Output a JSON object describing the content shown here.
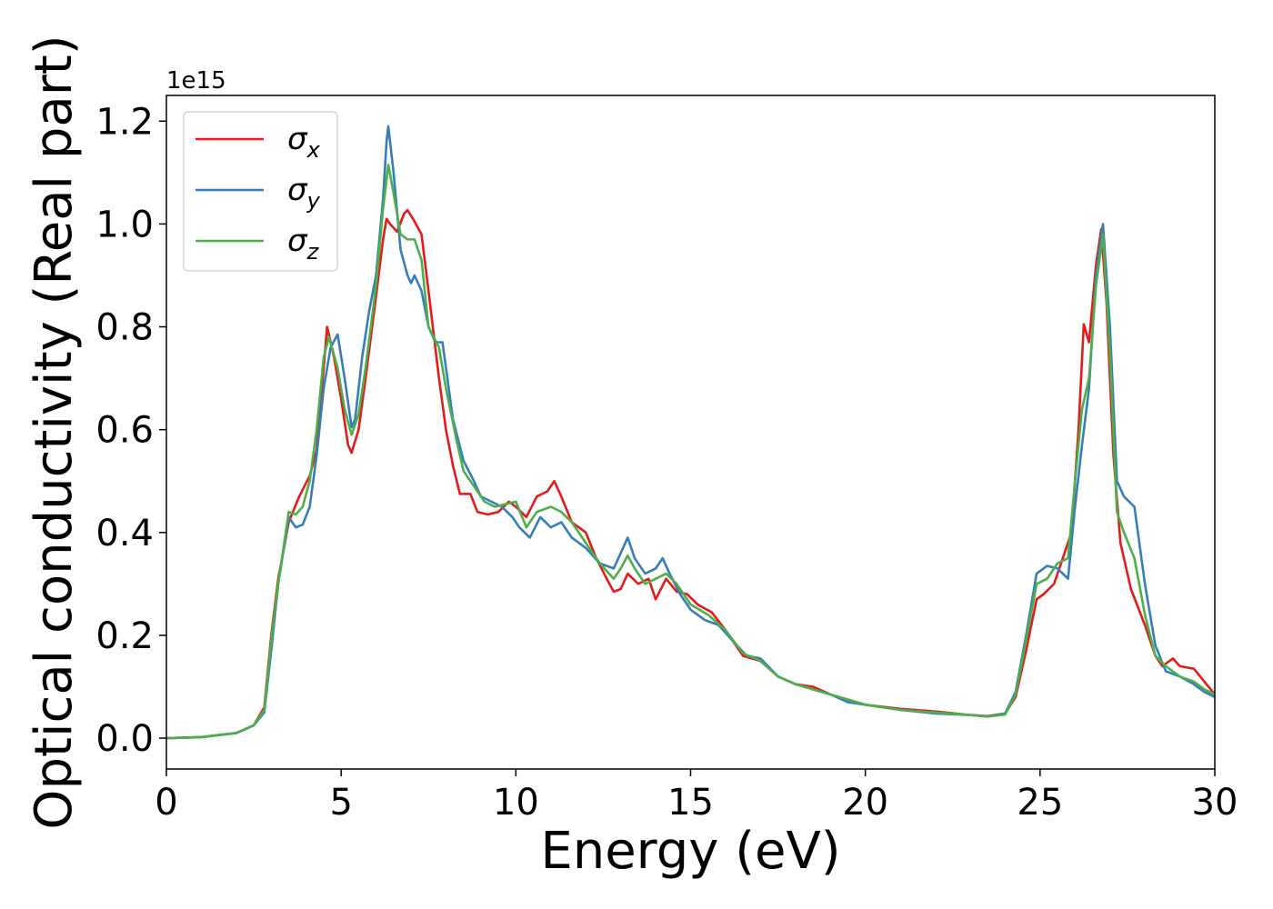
{
  "chart_data": {
    "type": "line",
    "xlabel": "Energy (eV)",
    "ylabel": "Optical conductivity (Real part)",
    "y_offset_text": "1e15",
    "xlim": [
      0,
      30
    ],
    "ylim": [
      -0.06,
      1.25
    ],
    "x_ticks": [
      0,
      5,
      10,
      15,
      20,
      25,
      30
    ],
    "x_tick_labels": [
      "0",
      "5",
      "10",
      "15",
      "20",
      "25",
      "30"
    ],
    "y_ticks": [
      0.0,
      0.2,
      0.4,
      0.6,
      0.8,
      1.0,
      1.2
    ],
    "y_tick_labels": [
      "0.0",
      "0.2",
      "0.4",
      "0.6",
      "0.8",
      "1.0",
      "1.2"
    ],
    "grid": false,
    "legend_position": "top-left",
    "series": [
      {
        "name": "σx",
        "symbol": "σ",
        "subscript": "x",
        "color": "#e41a1c",
        "points": [
          [
            0,
            0
          ],
          [
            1,
            0.002
          ],
          [
            2,
            0.01
          ],
          [
            2.5,
            0.025
          ],
          [
            2.8,
            0.06
          ],
          [
            3,
            0.2
          ],
          [
            3.2,
            0.31
          ],
          [
            3.5,
            0.42
          ],
          [
            3.8,
            0.47
          ],
          [
            4.1,
            0.51
          ],
          [
            4.3,
            0.56
          ],
          [
            4.5,
            0.72
          ],
          [
            4.6,
            0.8
          ],
          [
            4.8,
            0.74
          ],
          [
            5,
            0.66
          ],
          [
            5.2,
            0.57
          ],
          [
            5.3,
            0.555
          ],
          [
            5.5,
            0.6
          ],
          [
            5.7,
            0.7
          ],
          [
            6,
            0.86
          ],
          [
            6.2,
            0.97
          ],
          [
            6.3,
            1.01
          ],
          [
            6.4,
            1.0
          ],
          [
            6.6,
            0.985
          ],
          [
            6.8,
            1.02
          ],
          [
            6.9,
            1.027
          ],
          [
            7.1,
            1.005
          ],
          [
            7.3,
            0.98
          ],
          [
            7.5,
            0.87
          ],
          [
            7.8,
            0.7
          ],
          [
            8,
            0.6
          ],
          [
            8.2,
            0.53
          ],
          [
            8.4,
            0.475
          ],
          [
            8.7,
            0.475
          ],
          [
            8.9,
            0.44
          ],
          [
            9.2,
            0.435
          ],
          [
            9.5,
            0.44
          ],
          [
            9.8,
            0.46
          ],
          [
            10,
            0.45
          ],
          [
            10.3,
            0.43
          ],
          [
            10.6,
            0.47
          ],
          [
            10.9,
            0.48
          ],
          [
            11.1,
            0.5
          ],
          [
            11.3,
            0.47
          ],
          [
            11.6,
            0.42
          ],
          [
            12,
            0.4
          ],
          [
            12.3,
            0.35
          ],
          [
            12.6,
            0.31
          ],
          [
            12.8,
            0.285
          ],
          [
            13,
            0.29
          ],
          [
            13.2,
            0.32
          ],
          [
            13.5,
            0.3
          ],
          [
            13.8,
            0.31
          ],
          [
            14,
            0.27
          ],
          [
            14.3,
            0.31
          ],
          [
            14.6,
            0.285
          ],
          [
            14.9,
            0.28
          ],
          [
            15.2,
            0.26
          ],
          [
            15.6,
            0.245
          ],
          [
            16,
            0.21
          ],
          [
            16.5,
            0.16
          ],
          [
            17,
            0.15
          ],
          [
            17.5,
            0.12
          ],
          [
            18,
            0.105
          ],
          [
            18.5,
            0.1
          ],
          [
            19,
            0.085
          ],
          [
            19.5,
            0.075
          ],
          [
            20,
            0.065
          ],
          [
            21,
            0.057
          ],
          [
            22,
            0.052
          ],
          [
            23,
            0.045
          ],
          [
            23.5,
            0.043
          ],
          [
            24,
            0.048
          ],
          [
            24.3,
            0.08
          ],
          [
            24.6,
            0.17
          ],
          [
            24.9,
            0.27
          ],
          [
            25.1,
            0.28
          ],
          [
            25.4,
            0.3
          ],
          [
            25.7,
            0.36
          ],
          [
            25.9,
            0.4
          ],
          [
            26.1,
            0.6
          ],
          [
            26.25,
            0.805
          ],
          [
            26.4,
            0.77
          ],
          [
            26.6,
            0.92
          ],
          [
            26.75,
            0.99
          ],
          [
            26.9,
            0.85
          ],
          [
            27.1,
            0.55
          ],
          [
            27.3,
            0.38
          ],
          [
            27.6,
            0.29
          ],
          [
            28,
            0.22
          ],
          [
            28.3,
            0.16
          ],
          [
            28.5,
            0.14
          ],
          [
            28.8,
            0.155
          ],
          [
            29,
            0.14
          ],
          [
            29.4,
            0.135
          ],
          [
            29.7,
            0.11
          ],
          [
            30,
            0.085
          ]
        ]
      },
      {
        "name": "σy",
        "symbol": "σ",
        "subscript": "y",
        "color": "#377eb8",
        "points": [
          [
            0,
            0
          ],
          [
            1,
            0.002
          ],
          [
            2,
            0.01
          ],
          [
            2.5,
            0.025
          ],
          [
            2.8,
            0.05
          ],
          [
            3,
            0.17
          ],
          [
            3.2,
            0.3
          ],
          [
            3.5,
            0.43
          ],
          [
            3.7,
            0.41
          ],
          [
            3.9,
            0.415
          ],
          [
            4.1,
            0.45
          ],
          [
            4.3,
            0.55
          ],
          [
            4.5,
            0.68
          ],
          [
            4.7,
            0.76
          ],
          [
            4.9,
            0.785
          ],
          [
            5.1,
            0.7
          ],
          [
            5.3,
            0.605
          ],
          [
            5.4,
            0.62
          ],
          [
            5.6,
            0.74
          ],
          [
            5.8,
            0.83
          ],
          [
            6,
            0.9
          ],
          [
            6.2,
            1.05
          ],
          [
            6.3,
            1.16
          ],
          [
            6.35,
            1.19
          ],
          [
            6.5,
            1.1
          ],
          [
            6.7,
            0.95
          ],
          [
            6.9,
            0.9
          ],
          [
            7,
            0.885
          ],
          [
            7.1,
            0.9
          ],
          [
            7.3,
            0.87
          ],
          [
            7.5,
            0.8
          ],
          [
            7.7,
            0.77
          ],
          [
            7.9,
            0.77
          ],
          [
            8,
            0.72
          ],
          [
            8.2,
            0.62
          ],
          [
            8.5,
            0.54
          ],
          [
            8.8,
            0.5
          ],
          [
            9,
            0.47
          ],
          [
            9.3,
            0.46
          ],
          [
            9.6,
            0.45
          ],
          [
            9.9,
            0.43
          ],
          [
            10.1,
            0.41
          ],
          [
            10.4,
            0.39
          ],
          [
            10.7,
            0.43
          ],
          [
            11,
            0.41
          ],
          [
            11.3,
            0.42
          ],
          [
            11.6,
            0.39
          ],
          [
            12,
            0.37
          ],
          [
            12.4,
            0.34
          ],
          [
            12.8,
            0.33
          ],
          [
            13,
            0.36
          ],
          [
            13.2,
            0.39
          ],
          [
            13.4,
            0.35
          ],
          [
            13.7,
            0.32
          ],
          [
            14,
            0.33
          ],
          [
            14.2,
            0.35
          ],
          [
            14.4,
            0.32
          ],
          [
            14.7,
            0.28
          ],
          [
            15,
            0.25
          ],
          [
            15.4,
            0.23
          ],
          [
            15.8,
            0.22
          ],
          [
            16.2,
            0.19
          ],
          [
            16.6,
            0.16
          ],
          [
            17,
            0.155
          ],
          [
            17.5,
            0.12
          ],
          [
            18,
            0.105
          ],
          [
            18.5,
            0.095
          ],
          [
            19,
            0.085
          ],
          [
            19.5,
            0.07
          ],
          [
            20,
            0.065
          ],
          [
            21,
            0.055
          ],
          [
            22,
            0.048
          ],
          [
            23,
            0.045
          ],
          [
            23.5,
            0.042
          ],
          [
            24,
            0.048
          ],
          [
            24.3,
            0.09
          ],
          [
            24.6,
            0.2
          ],
          [
            24.9,
            0.32
          ],
          [
            25.2,
            0.335
          ],
          [
            25.5,
            0.33
          ],
          [
            25.8,
            0.31
          ],
          [
            26,
            0.45
          ],
          [
            26.2,
            0.57
          ],
          [
            26.4,
            0.68
          ],
          [
            26.6,
            0.9
          ],
          [
            26.8,
            1.0
          ],
          [
            27,
            0.8
          ],
          [
            27.2,
            0.5
          ],
          [
            27.4,
            0.47
          ],
          [
            27.7,
            0.45
          ],
          [
            28,
            0.3
          ],
          [
            28.3,
            0.18
          ],
          [
            28.6,
            0.13
          ],
          [
            29,
            0.12
          ],
          [
            29.4,
            0.105
          ],
          [
            29.7,
            0.09
          ],
          [
            30,
            0.08
          ]
        ]
      },
      {
        "name": "σz",
        "symbol": "σ",
        "subscript": "z",
        "color": "#4daf4a",
        "points": [
          [
            0,
            0
          ],
          [
            1,
            0.002
          ],
          [
            2,
            0.01
          ],
          [
            2.5,
            0.025
          ],
          [
            2.8,
            0.055
          ],
          [
            3,
            0.19
          ],
          [
            3.2,
            0.3
          ],
          [
            3.5,
            0.44
          ],
          [
            3.7,
            0.435
          ],
          [
            3.9,
            0.45
          ],
          [
            4.1,
            0.5
          ],
          [
            4.3,
            0.6
          ],
          [
            4.5,
            0.74
          ],
          [
            4.65,
            0.78
          ],
          [
            4.9,
            0.72
          ],
          [
            5.1,
            0.64
          ],
          [
            5.3,
            0.59
          ],
          [
            5.5,
            0.63
          ],
          [
            5.7,
            0.72
          ],
          [
            6,
            0.88
          ],
          [
            6.2,
            1.03
          ],
          [
            6.35,
            1.115
          ],
          [
            6.5,
            1.06
          ],
          [
            6.7,
            0.98
          ],
          [
            6.9,
            0.97
          ],
          [
            7.1,
            0.97
          ],
          [
            7.3,
            0.93
          ],
          [
            7.5,
            0.8
          ],
          [
            7.8,
            0.76
          ],
          [
            8,
            0.68
          ],
          [
            8.3,
            0.58
          ],
          [
            8.5,
            0.52
          ],
          [
            8.8,
            0.49
          ],
          [
            9.1,
            0.46
          ],
          [
            9.4,
            0.45
          ],
          [
            9.7,
            0.455
          ],
          [
            10,
            0.46
          ],
          [
            10.3,
            0.41
          ],
          [
            10.6,
            0.44
          ],
          [
            11,
            0.45
          ],
          [
            11.3,
            0.44
          ],
          [
            11.6,
            0.42
          ],
          [
            12,
            0.38
          ],
          [
            12.4,
            0.34
          ],
          [
            12.8,
            0.31
          ],
          [
            13,
            0.33
          ],
          [
            13.2,
            0.355
          ],
          [
            13.4,
            0.33
          ],
          [
            13.7,
            0.3
          ],
          [
            14,
            0.31
          ],
          [
            14.3,
            0.32
          ],
          [
            14.6,
            0.3
          ],
          [
            15,
            0.26
          ],
          [
            15.5,
            0.24
          ],
          [
            16,
            0.21
          ],
          [
            16.5,
            0.165
          ],
          [
            17,
            0.15
          ],
          [
            17.5,
            0.12
          ],
          [
            18,
            0.105
          ],
          [
            18.5,
            0.095
          ],
          [
            19,
            0.085
          ],
          [
            19.5,
            0.075
          ],
          [
            20,
            0.065
          ],
          [
            21,
            0.055
          ],
          [
            22,
            0.05
          ],
          [
            23,
            0.045
          ],
          [
            23.5,
            0.042
          ],
          [
            24,
            0.046
          ],
          [
            24.3,
            0.085
          ],
          [
            24.6,
            0.19
          ],
          [
            24.9,
            0.3
          ],
          [
            25.2,
            0.31
          ],
          [
            25.5,
            0.34
          ],
          [
            25.8,
            0.35
          ],
          [
            26,
            0.5
          ],
          [
            26.2,
            0.64
          ],
          [
            26.4,
            0.7
          ],
          [
            26.6,
            0.88
          ],
          [
            26.8,
            0.98
          ],
          [
            27,
            0.75
          ],
          [
            27.2,
            0.44
          ],
          [
            27.4,
            0.4
          ],
          [
            27.7,
            0.35
          ],
          [
            28,
            0.24
          ],
          [
            28.3,
            0.16
          ],
          [
            28.6,
            0.14
          ],
          [
            29,
            0.12
          ],
          [
            29.4,
            0.11
          ],
          [
            29.7,
            0.095
          ],
          [
            30,
            0.085
          ]
        ]
      }
    ]
  }
}
